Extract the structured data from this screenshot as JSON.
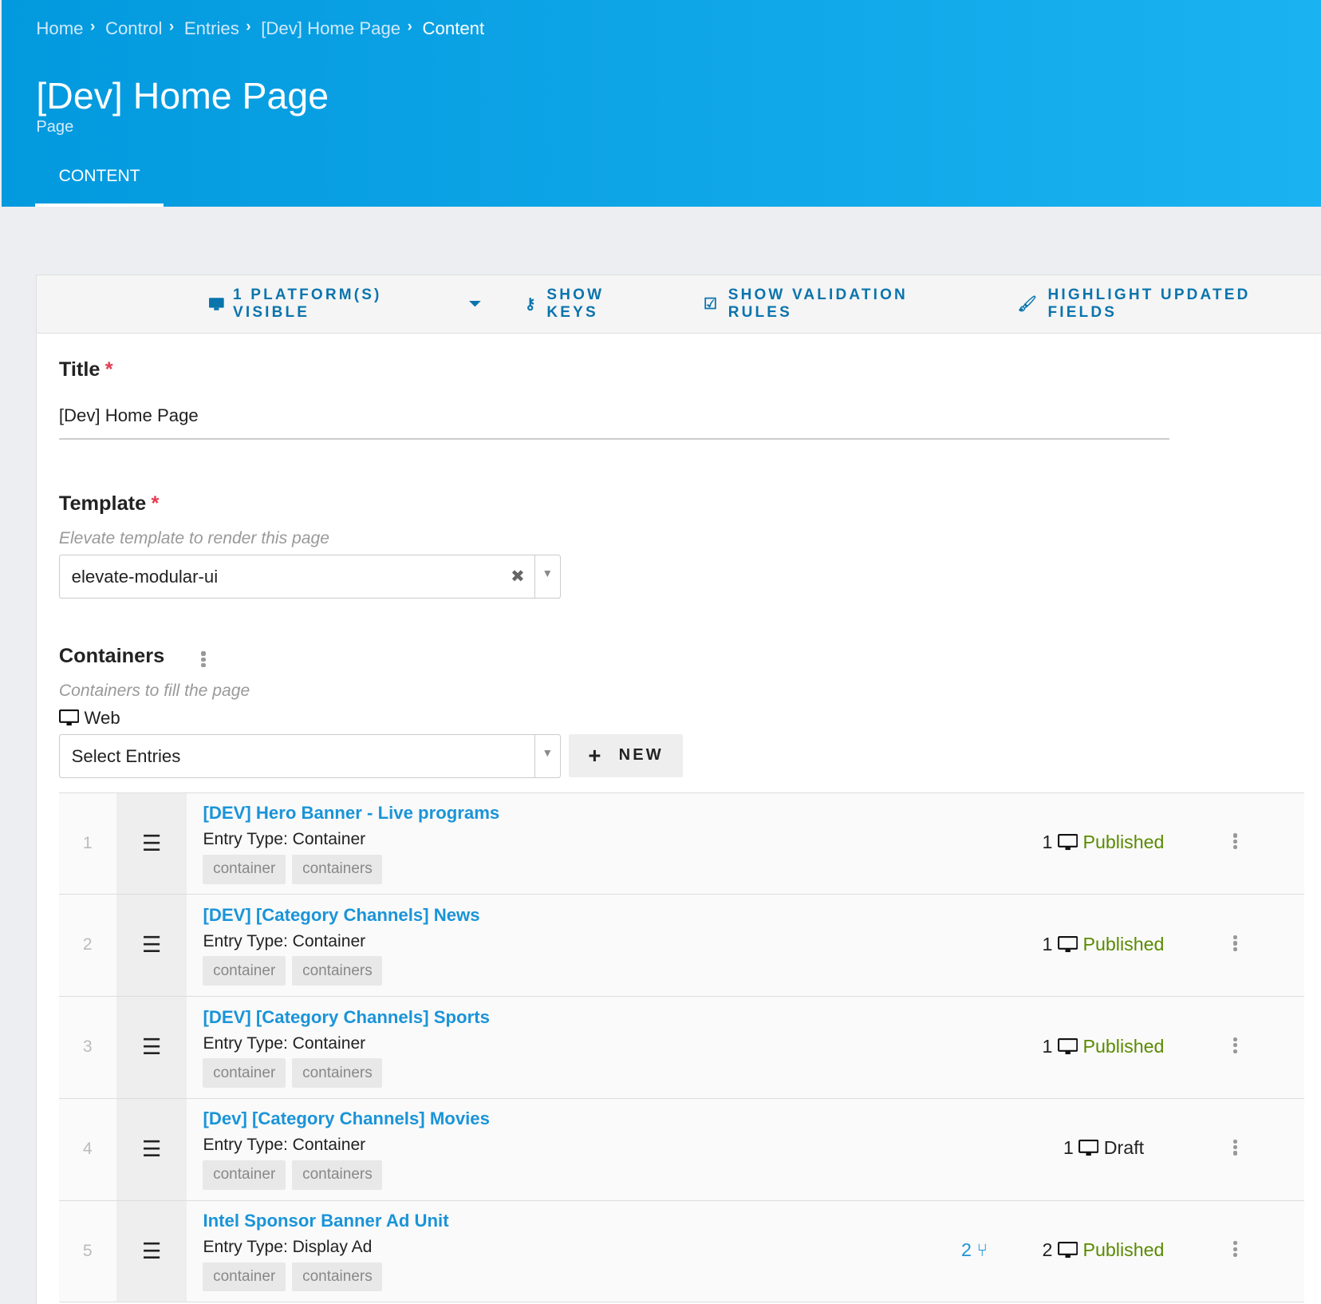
{
  "breadcrumb": [
    "Home",
    "Control",
    "Entries",
    "[Dev] Home Page",
    "Content"
  ],
  "header": {
    "title": "[Dev] Home Page",
    "subtitle": "Page",
    "tab": "CONTENT"
  },
  "toolbar": {
    "platforms": "1 PLATFORM(S) VISIBLE",
    "show_keys": "SHOW KEYS",
    "show_validation": "SHOW VALIDATION RULES",
    "highlight": "HIGHLIGHT UPDATED FIELDS"
  },
  "fields": {
    "title": {
      "label": "Title",
      "required": "*",
      "value": "[Dev] Home Page"
    },
    "template": {
      "label": "Template",
      "required": "*",
      "hint": "Elevate template to render this page",
      "value": "elevate-modular-ui"
    },
    "containers": {
      "label": "Containers",
      "hint": "Containers to fill the page",
      "platform": "Web",
      "placeholder": "Select Entries",
      "new_label": "NEW"
    }
  },
  "entries": [
    {
      "index": "1",
      "name": "[DEV] Hero Banner - Live programs",
      "type": "Entry Type: Container",
      "tags": [
        "container",
        "containers"
      ],
      "platforms": "1",
      "status": "Published",
      "branches": ""
    },
    {
      "index": "2",
      "name": "[DEV] [Category Channels] News",
      "type": "Entry Type: Container",
      "tags": [
        "container",
        "containers"
      ],
      "platforms": "1",
      "status": "Published",
      "branches": ""
    },
    {
      "index": "3",
      "name": "[DEV] [Category Channels] Sports",
      "type": "Entry Type: Container",
      "tags": [
        "container",
        "containers"
      ],
      "platforms": "1",
      "status": "Published",
      "branches": ""
    },
    {
      "index": "4",
      "name": "[Dev] [Category Channels] Movies",
      "type": "Entry Type: Container",
      "tags": [
        "container",
        "containers"
      ],
      "platforms": "1",
      "status": "Draft",
      "branches": ""
    },
    {
      "index": "5",
      "name": "Intel Sponsor Banner Ad Unit",
      "type": "Entry Type: Display Ad",
      "tags": [
        "container",
        "containers"
      ],
      "platforms": "2",
      "status": "Published",
      "branches": "2"
    }
  ],
  "colors": {
    "header": "#0399de",
    "link": "#1a94d8",
    "published": "#5a8a00",
    "required": "#e53950",
    "toolbar": "#0a74ad"
  }
}
